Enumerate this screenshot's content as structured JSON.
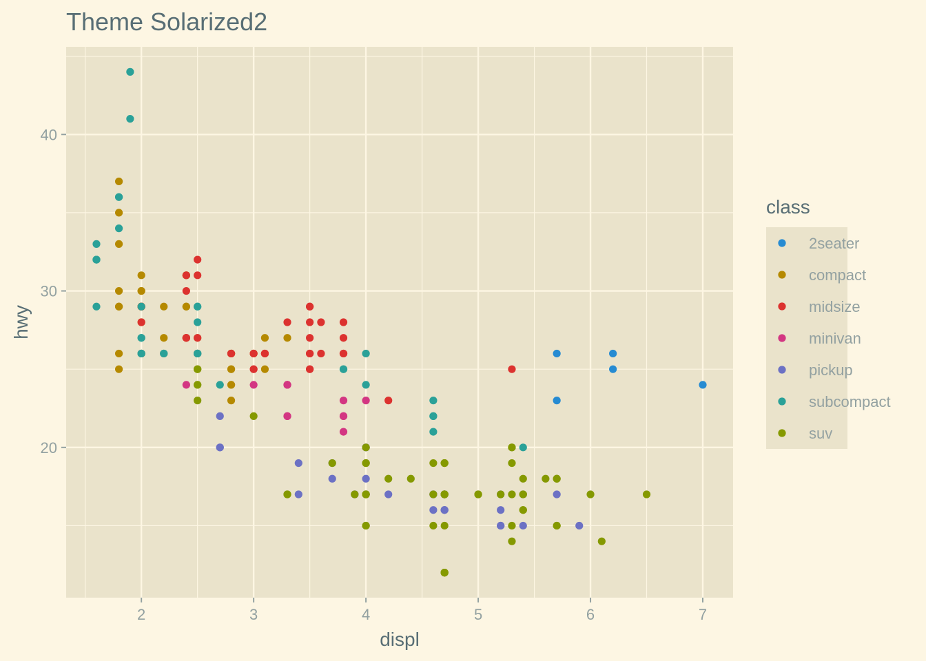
{
  "chart_data": {
    "type": "scatter",
    "title": "Theme Solarized2",
    "xlabel": "displ",
    "ylabel": "hwy",
    "xlim": [
      1.33,
      7.27
    ],
    "ylim": [
      10.4,
      45.6
    ],
    "x_ticks": [
      2,
      3,
      4,
      5,
      6,
      7
    ],
    "y_ticks": [
      20,
      30,
      40
    ],
    "grid": true,
    "legend": {
      "title": "class",
      "position": "right"
    },
    "series": [
      {
        "name": "2seater",
        "color": "#268bd2",
        "points": [
          [
            5.7,
            26
          ],
          [
            5.7,
            23
          ],
          [
            6.2,
            26
          ],
          [
            6.2,
            25
          ],
          [
            7.0,
            24
          ]
        ]
      },
      {
        "name": "compact",
        "color": "#b58900",
        "points": [
          [
            1.8,
            29
          ],
          [
            1.8,
            29
          ],
          [
            2.0,
            31
          ],
          [
            2.0,
            30
          ],
          [
            2.8,
            26
          ],
          [
            2.8,
            26
          ],
          [
            3.1,
            27
          ],
          [
            1.8,
            26
          ],
          [
            1.8,
            25
          ],
          [
            2.0,
            28
          ],
          [
            2.0,
            29
          ],
          [
            2.8,
            25
          ],
          [
            2.8,
            25
          ],
          [
            3.1,
            25
          ],
          [
            2.0,
            29
          ],
          [
            2.2,
            27
          ],
          [
            2.2,
            29
          ],
          [
            2.4,
            31
          ],
          [
            2.4,
            31
          ],
          [
            3.0,
            26
          ],
          [
            3.3,
            27
          ],
          [
            1.8,
            33
          ],
          [
            1.8,
            35
          ],
          [
            1.8,
            37
          ],
          [
            2.0,
            29
          ],
          [
            2.0,
            26
          ],
          [
            2.5,
            27
          ],
          [
            2.5,
            25
          ],
          [
            2.8,
            23
          ],
          [
            2.8,
            24
          ],
          [
            2.4,
            27
          ],
          [
            2.4,
            29
          ],
          [
            2.5,
            26
          ],
          [
            1.8,
            30
          ],
          [
            2.0,
            29
          ],
          [
            2.4,
            29
          ],
          [
            3.0,
            26
          ],
          [
            2.2,
            26
          ],
          [
            2.0,
            30
          ],
          [
            2.8,
            24
          ],
          [
            2.8,
            26
          ],
          [
            2.0,
            29
          ]
        ]
      },
      {
        "name": "midsize",
        "color": "#dc322f",
        "points": [
          [
            2.4,
            27
          ],
          [
            2.4,
            30
          ],
          [
            2.5,
            32
          ],
          [
            2.5,
            31
          ],
          [
            3.1,
            26
          ],
          [
            3.5,
            29
          ],
          [
            3.5,
            26
          ],
          [
            3.6,
            28
          ],
          [
            3.8,
            28
          ],
          [
            3.8,
            27
          ],
          [
            5.3,
            25
          ],
          [
            3.5,
            27
          ],
          [
            3.5,
            28
          ],
          [
            3.8,
            26
          ],
          [
            2.8,
            26
          ],
          [
            3.1,
            26
          ],
          [
            4.2,
            23
          ],
          [
            2.4,
            31
          ],
          [
            2.4,
            27
          ],
          [
            2.5,
            26
          ],
          [
            3.0,
            26
          ],
          [
            3.5,
            25
          ],
          [
            2.0,
            28
          ],
          [
            2.0,
            29
          ],
          [
            2.0,
            26
          ],
          [
            3.0,
            25
          ],
          [
            3.5,
            26
          ],
          [
            3.6,
            26
          ],
          [
            3.3,
            28
          ],
          [
            2.4,
            27
          ],
          [
            2.0,
            29
          ],
          [
            3.0,
            25
          ],
          [
            3.3,
            24
          ],
          [
            3.1,
            26
          ],
          [
            2.5,
            27
          ],
          [
            2.8,
            26
          ],
          [
            3.0,
            26
          ],
          [
            3.5,
            29
          ],
          [
            3.5,
            25
          ],
          [
            3.8,
            26
          ],
          [
            2.5,
            26
          ]
        ]
      },
      {
        "name": "minivan",
        "color": "#d33682",
        "points": [
          [
            2.4,
            24
          ],
          [
            3.0,
            24
          ],
          [
            3.3,
            22
          ],
          [
            3.3,
            22
          ],
          [
            3.3,
            24
          ],
          [
            3.8,
            22
          ],
          [
            3.8,
            21
          ],
          [
            3.8,
            23
          ],
          [
            4.0,
            23
          ],
          [
            3.3,
            24
          ],
          [
            3.8,
            22
          ]
        ]
      },
      {
        "name": "pickup",
        "color": "#6c71c4",
        "points": [
          [
            3.7,
            19
          ],
          [
            3.7,
            18
          ],
          [
            3.9,
            17
          ],
          [
            3.9,
            17
          ],
          [
            4.7,
            17
          ],
          [
            4.7,
            17
          ],
          [
            4.7,
            17
          ],
          [
            5.2,
            15
          ],
          [
            5.2,
            15
          ],
          [
            4.7,
            16
          ],
          [
            4.7,
            17
          ],
          [
            5.2,
            17
          ],
          [
            5.7,
            17
          ],
          [
            5.9,
            15
          ],
          [
            4.2,
            17
          ],
          [
            4.6,
            17
          ],
          [
            4.6,
            16
          ],
          [
            5.4,
            17
          ],
          [
            5.4,
            15
          ],
          [
            2.7,
            20
          ],
          [
            2.7,
            20
          ],
          [
            2.7,
            22
          ],
          [
            3.4,
            17
          ],
          [
            3.4,
            19
          ],
          [
            4.0,
            18
          ],
          [
            4.0,
            20
          ],
          [
            4.7,
            17
          ],
          [
            4.7,
            16
          ],
          [
            4.6,
            17
          ],
          [
            5.2,
            16
          ],
          [
            4.7,
            16
          ],
          [
            4.0,
            20
          ],
          [
            4.0,
            17
          ]
        ]
      },
      {
        "name": "subcompact",
        "color": "#2aa198",
        "points": [
          [
            3.8,
            25
          ],
          [
            3.8,
            25
          ],
          [
            4.0,
            26
          ],
          [
            4.0,
            24
          ],
          [
            4.6,
            21
          ],
          [
            4.6,
            22
          ],
          [
            4.6,
            23
          ],
          [
            4.6,
            22
          ],
          [
            5.4,
            20
          ],
          [
            1.6,
            33
          ],
          [
            1.6,
            32
          ],
          [
            1.6,
            32
          ],
          [
            1.6,
            29
          ],
          [
            1.6,
            32
          ],
          [
            1.8,
            34
          ],
          [
            1.8,
            36
          ],
          [
            1.8,
            36
          ],
          [
            2.0,
            29
          ],
          [
            2.0,
            26
          ],
          [
            2.0,
            27
          ],
          [
            2.0,
            27
          ],
          [
            2.5,
            26
          ],
          [
            2.5,
            26
          ],
          [
            2.5,
            28
          ],
          [
            2.5,
            29
          ],
          [
            2.2,
            26
          ],
          [
            2.5,
            26
          ],
          [
            2.7,
            24
          ],
          [
            1.9,
            44
          ],
          [
            1.9,
            41
          ],
          [
            2.0,
            26
          ],
          [
            2.5,
            26
          ],
          [
            2.5,
            29
          ],
          [
            2.0,
            26
          ],
          [
            2.2,
            26
          ]
        ]
      },
      {
        "name": "suv",
        "color": "#859900",
        "points": [
          [
            5.7,
            18
          ],
          [
            5.7,
            15
          ],
          [
            6.0,
            17
          ],
          [
            5.3,
            20
          ],
          [
            5.3,
            20
          ],
          [
            5.3,
            15
          ],
          [
            5.3,
            14
          ],
          [
            5.7,
            18
          ],
          [
            6.5,
            17
          ],
          [
            4.7,
            12
          ],
          [
            4.7,
            12
          ],
          [
            4.7,
            17
          ],
          [
            5.2,
            17
          ],
          [
            4.0,
            17
          ],
          [
            4.0,
            19
          ],
          [
            4.6,
            19
          ],
          [
            5.0,
            17
          ],
          [
            4.2,
            18
          ],
          [
            4.4,
            18
          ],
          [
            4.6,
            17
          ],
          [
            5.4,
            17
          ],
          [
            5.4,
            18
          ],
          [
            5.4,
            17
          ],
          [
            5.4,
            16
          ],
          [
            4.7,
            12
          ],
          [
            5.7,
            15
          ],
          [
            6.1,
            14
          ],
          [
            5.3,
            19
          ],
          [
            4.7,
            19
          ],
          [
            4.7,
            17
          ],
          [
            4.0,
            15
          ],
          [
            4.6,
            15
          ],
          [
            4.7,
            12
          ],
          [
            4.7,
            15
          ],
          [
            4.7,
            19
          ],
          [
            3.0,
            22
          ],
          [
            3.7,
            19
          ],
          [
            4.0,
            17
          ],
          [
            4.7,
            19
          ],
          [
            5.6,
            18
          ],
          [
            2.5,
            25
          ],
          [
            2.5,
            24
          ],
          [
            2.5,
            24
          ],
          [
            2.5,
            23
          ],
          [
            2.5,
            25
          ],
          [
            4.0,
            19
          ],
          [
            4.0,
            17
          ],
          [
            3.9,
            17
          ],
          [
            3.3,
            17
          ],
          [
            3.3,
            17
          ],
          [
            4.0,
            20
          ],
          [
            4.0,
            19
          ],
          [
            4.0,
            17
          ],
          [
            4.7,
            17
          ],
          [
            4.7,
            12
          ],
          [
            4.7,
            17
          ],
          [
            5.0,
            17
          ],
          [
            5.3,
            17
          ],
          [
            5.4,
            16
          ],
          [
            4.0,
            15
          ]
        ]
      }
    ]
  }
}
